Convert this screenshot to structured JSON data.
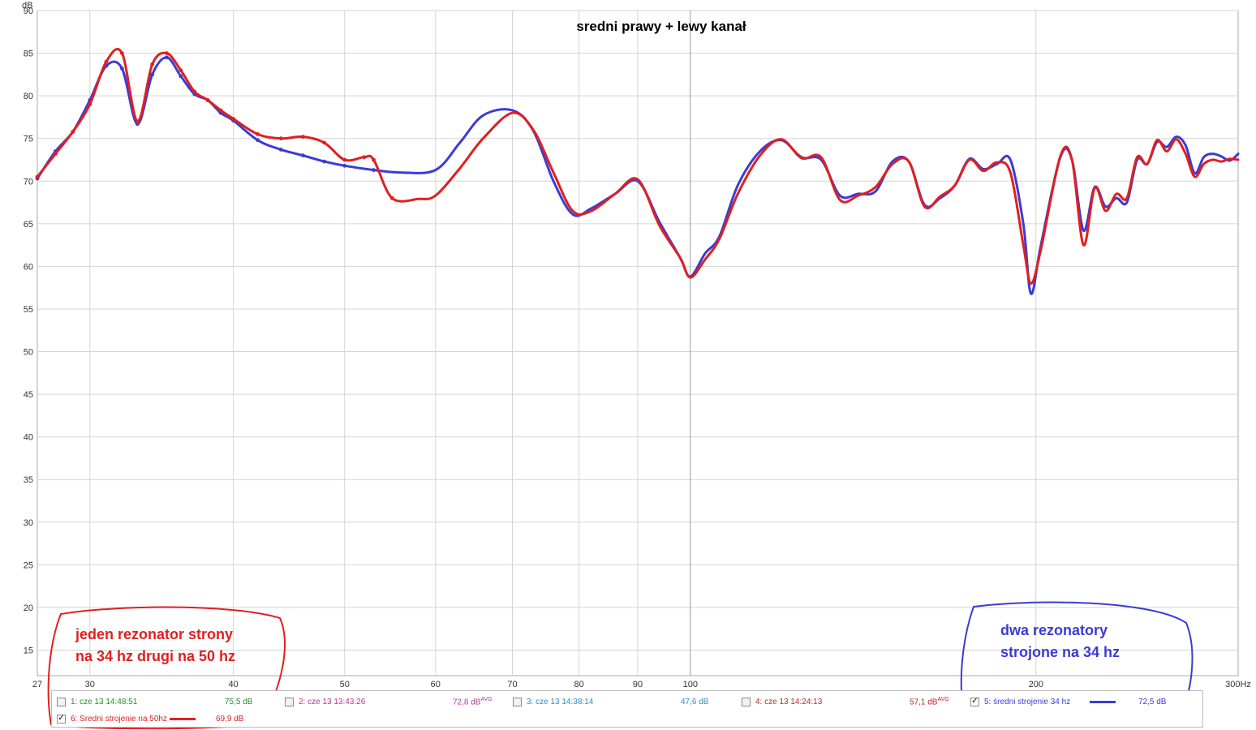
{
  "chart_data": {
    "type": "line",
    "title": "sredni prawy + lewy kanał",
    "ylabel": "dB",
    "x_unit": "Hz",
    "x_scale": "log",
    "xlim": [
      27,
      300
    ],
    "ylim": [
      12,
      90
    ],
    "y_ticks": [
      90,
      85,
      80,
      75,
      70,
      65,
      60,
      55,
      50,
      45,
      40,
      35,
      30,
      25,
      20,
      15
    ],
    "x_ticks": [
      27,
      30,
      40,
      50,
      60,
      70,
      80,
      90,
      100,
      200,
      300
    ],
    "x_tick_labels": [
      "27",
      "30",
      "40",
      "50",
      "60",
      "70",
      "80",
      "90",
      "100",
      "200",
      "300Hz"
    ],
    "grid": true,
    "series": [
      {
        "name": "5: średni strojenie 34 hz",
        "color": "#3b3bd6",
        "x": [
          27,
          28,
          29,
          30,
          31,
          32,
          33,
          34,
          35,
          36,
          37,
          38,
          39,
          40,
          42,
          44,
          46,
          48,
          50,
          53,
          56,
          60,
          63,
          66,
          70,
          73,
          76,
          79,
          82,
          86,
          90,
          94,
          98,
          100,
          103,
          106,
          110,
          115,
          120,
          125,
          130,
          135,
          140,
          145,
          150,
          155,
          160,
          165,
          170,
          175,
          180,
          185,
          190,
          195,
          198,
          202,
          210,
          215,
          220,
          225,
          230,
          235,
          240,
          245,
          250,
          255,
          260,
          265,
          270,
          275,
          280,
          285,
          290,
          295,
          300
        ],
        "y": [
          70.3,
          73.5,
          75.8,
          79.5,
          83.5,
          83.2,
          76.7,
          82.5,
          84.5,
          82.3,
          80.2,
          79.5,
          78.0,
          77.1,
          74.8,
          73.7,
          73.0,
          72.3,
          71.8,
          71.3,
          71.0,
          71.3,
          74.5,
          77.7,
          78.3,
          75.9,
          70.0,
          66.1,
          66.8,
          68.5,
          70.0,
          65.2,
          61.0,
          58.8,
          61.5,
          63.5,
          69.5,
          73.5,
          74.8,
          72.8,
          72.5,
          68.3,
          68.5,
          68.8,
          72.3,
          72.3,
          67.2,
          68.0,
          69.5,
          72.6,
          71.4,
          72.0,
          72.5,
          65.0,
          56.8,
          62.5,
          72.8,
          72.5,
          64.2,
          69.3,
          67.0,
          68.0,
          67.5,
          72.5,
          72.0,
          74.6,
          74.0,
          75.2,
          74.2,
          70.9,
          72.8,
          73.2,
          72.9,
          72.4,
          73.2
        ]
      },
      {
        "name": "6: Sredni strojenie na 50hz",
        "color": "#e01f1f",
        "x": [
          27,
          28,
          29,
          30,
          31,
          32,
          33,
          34,
          35,
          36,
          37,
          38,
          39,
          40,
          42,
          44,
          46,
          48,
          50,
          52,
          53,
          55,
          58,
          60,
          63,
          66,
          70,
          73,
          76,
          79,
          82,
          86,
          90,
          94,
          98,
          100,
          103,
          106,
          110,
          115,
          120,
          125,
          130,
          135,
          140,
          145,
          150,
          155,
          160,
          165,
          170,
          175,
          180,
          185,
          190,
          195,
          198,
          202,
          210,
          215,
          220,
          225,
          230,
          235,
          240,
          245,
          250,
          255,
          260,
          265,
          270,
          275,
          280,
          285,
          290,
          295,
          300
        ],
        "y": [
          70.5,
          73.2,
          75.8,
          79.0,
          84.0,
          85.0,
          77.0,
          83.7,
          85.0,
          83.0,
          80.5,
          79.5,
          78.3,
          77.3,
          75.5,
          75.0,
          75.2,
          74.5,
          72.5,
          72.8,
          72.5,
          68.0,
          67.9,
          68.3,
          71.5,
          75.0,
          78.0,
          76.0,
          71.0,
          66.5,
          66.5,
          68.5,
          70.2,
          64.8,
          61.0,
          58.7,
          60.8,
          63.2,
          68.5,
          73.0,
          74.9,
          72.7,
          72.8,
          67.8,
          68.3,
          69.3,
          72.0,
          72.3,
          67.0,
          68.2,
          69.5,
          72.5,
          71.2,
          72.2,
          71.0,
          62.5,
          58.0,
          62.0,
          72.9,
          72.5,
          62.5,
          69.2,
          66.5,
          68.5,
          68.0,
          72.8,
          72.0,
          74.8,
          73.5,
          74.9,
          73.2,
          70.5,
          72.0,
          72.5,
          72.3,
          72.6,
          72.5
        ]
      }
    ],
    "annotations": [
      {
        "lines": [
          "jeden rezonator strony",
          "na 34 hz drugi na 50 hz"
        ],
        "color": "#e01f1f"
      },
      {
        "lines": [
          "dwa rezonatory",
          "strojone na 34 hz"
        ],
        "color": "#3b3bd6"
      }
    ]
  },
  "legend": {
    "items": [
      {
        "name": "1: cze 13 14:48:51",
        "value": "75,5 dB",
        "avg": "",
        "checked": false,
        "color": "#2e8b2e"
      },
      {
        "name": "2: cze 13 13:43:26",
        "value": "72,8 dB",
        "avg": "AVG",
        "checked": false,
        "color": "#b0389a"
      },
      {
        "name": "3: cze 13 14:38:14",
        "value": "47,6 dB",
        "avg": "",
        "checked": false,
        "color": "#2f8fc4"
      },
      {
        "name": "4: cze 13 14:24:13",
        "value": "57,1 dB",
        "avg": "AVG",
        "checked": false,
        "color": "#c0271f"
      },
      {
        "name": "5: średni strojenie 34 hz",
        "value": "72,5 dB",
        "avg": "",
        "checked": true,
        "color": "#3b3bd6"
      },
      {
        "name": "6: Sredni strojenie na 50hz",
        "value": "69,9 dB",
        "avg": "",
        "checked": true,
        "color": "#e01f1f"
      }
    ]
  }
}
